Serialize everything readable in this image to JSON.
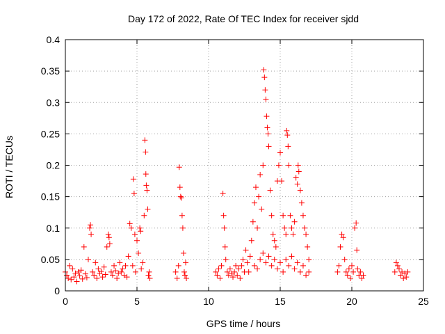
{
  "chart_data": {
    "type": "scatter",
    "title": "Day 172 of 2022, Rate Of TEC Index for receiver sjdd",
    "xlabel": "GPS time / hours",
    "ylabel": "ROTI / TECUs",
    "xlim": [
      0,
      25
    ],
    "ylim": [
      0,
      0.4
    ],
    "x_ticks": [
      0,
      5,
      10,
      15,
      20,
      25
    ],
    "x_tick_labels": [
      "0",
      "5",
      "10",
      "15",
      "20",
      "25"
    ],
    "y_ticks": [
      0,
      0.05,
      0.1,
      0.15,
      0.2,
      0.25,
      0.3,
      0.35,
      0.4
    ],
    "y_tick_labels": [
      "0",
      "0.05",
      "0.1",
      "0.15",
      "0.2",
      "0.25",
      "0.3",
      "0.35",
      "0.4"
    ],
    "grid": true,
    "marker": "+",
    "color": "#ff0000",
    "series": [
      {
        "name": "ROTI",
        "points": [
          [
            0.0,
            0.03
          ],
          [
            0.1,
            0.025
          ],
          [
            0.2,
            0.02
          ],
          [
            0.3,
            0.04
          ],
          [
            0.4,
            0.018
          ],
          [
            0.5,
            0.035
          ],
          [
            0.6,
            0.022
          ],
          [
            0.7,
            0.028
          ],
          [
            0.8,
            0.015
          ],
          [
            0.9,
            0.03
          ],
          [
            1.0,
            0.024
          ],
          [
            1.1,
            0.033
          ],
          [
            1.2,
            0.019
          ],
          [
            1.3,
            0.07
          ],
          [
            1.4,
            0.027
          ],
          [
            1.5,
            0.021
          ],
          [
            1.6,
            0.05
          ],
          [
            1.7,
            0.1
          ],
          [
            1.75,
            0.105
          ],
          [
            1.8,
            0.09
          ],
          [
            1.9,
            0.03
          ],
          [
            2.0,
            0.025
          ],
          [
            2.1,
            0.045
          ],
          [
            2.2,
            0.02
          ],
          [
            2.3,
            0.035
          ],
          [
            2.4,
            0.028
          ],
          [
            2.5,
            0.031
          ],
          [
            2.6,
            0.022
          ],
          [
            2.7,
            0.038
          ],
          [
            2.8,
            0.026
          ],
          [
            2.9,
            0.07
          ],
          [
            3.0,
            0.09
          ],
          [
            3.05,
            0.085
          ],
          [
            3.1,
            0.075
          ],
          [
            3.2,
            0.03
          ],
          [
            3.3,
            0.025
          ],
          [
            3.4,
            0.04
          ],
          [
            3.5,
            0.032
          ],
          [
            3.6,
            0.02
          ],
          [
            3.7,
            0.028
          ],
          [
            3.8,
            0.045
          ],
          [
            3.9,
            0.03
          ],
          [
            4.0,
            0.035
          ],
          [
            4.1,
            0.025
          ],
          [
            4.2,
            0.04
          ],
          [
            4.3,
            0.022
          ],
          [
            4.4,
            0.055
          ],
          [
            4.5,
            0.107
          ],
          [
            4.6,
            0.1
          ],
          [
            4.7,
            0.04
          ],
          [
            4.75,
            0.178
          ],
          [
            4.8,
            0.155
          ],
          [
            4.85,
            0.09
          ],
          [
            4.9,
            0.03
          ],
          [
            5.0,
            0.08
          ],
          [
            5.1,
            0.06
          ],
          [
            5.2,
            0.1
          ],
          [
            5.25,
            0.095
          ],
          [
            5.3,
            0.035
          ],
          [
            5.4,
            0.045
          ],
          [
            5.5,
            0.12
          ],
          [
            5.55,
            0.24
          ],
          [
            5.6,
            0.221
          ],
          [
            5.62,
            0.186
          ],
          [
            5.65,
            0.168
          ],
          [
            5.7,
            0.16
          ],
          [
            5.75,
            0.13
          ],
          [
            5.8,
            0.025
          ],
          [
            5.85,
            0.03
          ],
          [
            5.9,
            0.02
          ],
          [
            7.7,
            0.03
          ],
          [
            7.8,
            0.02
          ],
          [
            7.9,
            0.04
          ],
          [
            7.95,
            0.197
          ],
          [
            8.0,
            0.165
          ],
          [
            8.05,
            0.15
          ],
          [
            8.1,
            0.148
          ],
          [
            8.15,
            0.12
          ],
          [
            8.2,
            0.1
          ],
          [
            8.25,
            0.06
          ],
          [
            8.3,
            0.03
          ],
          [
            8.35,
            0.025
          ],
          [
            8.4,
            0.045
          ],
          [
            8.45,
            0.02
          ],
          [
            10.5,
            0.03
          ],
          [
            10.6,
            0.025
          ],
          [
            10.7,
            0.035
          ],
          [
            10.8,
            0.02
          ],
          [
            10.9,
            0.04
          ],
          [
            11.0,
            0.155
          ],
          [
            11.05,
            0.12
          ],
          [
            11.1,
            0.1
          ],
          [
            11.15,
            0.07
          ],
          [
            11.2,
            0.05
          ],
          [
            11.3,
            0.03
          ],
          [
            11.4,
            0.025
          ],
          [
            11.5,
            0.035
          ],
          [
            11.6,
            0.028
          ],
          [
            11.7,
            0.022
          ],
          [
            11.8,
            0.03
          ],
          [
            11.9,
            0.04
          ],
          [
            12.0,
            0.025
          ],
          [
            12.1,
            0.035
          ],
          [
            12.2,
            0.02
          ],
          [
            12.3,
            0.04
          ],
          [
            12.4,
            0.05
          ],
          [
            12.5,
            0.03
          ],
          [
            12.6,
            0.065
          ],
          [
            12.7,
            0.045
          ],
          [
            12.8,
            0.03
          ],
          [
            12.9,
            0.055
          ],
          [
            13.0,
            0.08
          ],
          [
            13.1,
            0.11
          ],
          [
            13.2,
            0.14
          ],
          [
            13.3,
            0.165
          ],
          [
            13.4,
            0.1
          ],
          [
            13.5,
            0.15
          ],
          [
            13.6,
            0.185
          ],
          [
            13.7,
            0.13
          ],
          [
            13.8,
            0.2
          ],
          [
            13.85,
            0.352
          ],
          [
            13.9,
            0.34
          ],
          [
            13.95,
            0.32
          ],
          [
            14.0,
            0.305
          ],
          [
            14.05,
            0.278
          ],
          [
            14.1,
            0.26
          ],
          [
            14.15,
            0.25
          ],
          [
            14.2,
            0.23
          ],
          [
            14.3,
            0.16
          ],
          [
            14.4,
            0.12
          ],
          [
            14.5,
            0.09
          ],
          [
            14.6,
            0.08
          ],
          [
            14.7,
            0.07
          ],
          [
            14.8,
            0.175
          ],
          [
            14.9,
            0.2
          ],
          [
            15.0,
            0.22
          ],
          [
            15.1,
            0.175
          ],
          [
            15.2,
            0.12
          ],
          [
            15.3,
            0.1
          ],
          [
            15.4,
            0.09
          ],
          [
            15.45,
            0.255
          ],
          [
            15.5,
            0.248
          ],
          [
            15.55,
            0.23
          ],
          [
            15.6,
            0.2
          ],
          [
            15.7,
            0.12
          ],
          [
            15.8,
            0.1
          ],
          [
            15.9,
            0.09
          ],
          [
            16.0,
            0.11
          ],
          [
            16.1,
            0.18
          ],
          [
            16.2,
            0.17
          ],
          [
            16.25,
            0.2
          ],
          [
            16.3,
            0.19
          ],
          [
            16.4,
            0.16
          ],
          [
            16.5,
            0.14
          ],
          [
            16.6,
            0.12
          ],
          [
            16.7,
            0.1
          ],
          [
            16.8,
            0.09
          ],
          [
            16.9,
            0.07
          ],
          [
            17.0,
            0.05
          ],
          [
            13.2,
            0.04
          ],
          [
            13.4,
            0.035
          ],
          [
            13.6,
            0.05
          ],
          [
            13.8,
            0.06
          ],
          [
            14.0,
            0.045
          ],
          [
            14.2,
            0.055
          ],
          [
            14.4,
            0.04
          ],
          [
            14.6,
            0.05
          ],
          [
            14.8,
            0.035
          ],
          [
            15.0,
            0.045
          ],
          [
            15.2,
            0.03
          ],
          [
            15.4,
            0.05
          ],
          [
            15.6,
            0.04
          ],
          [
            15.8,
            0.055
          ],
          [
            16.0,
            0.035
          ],
          [
            16.2,
            0.045
          ],
          [
            16.4,
            0.03
          ],
          [
            16.6,
            0.04
          ],
          [
            16.8,
            0.025
          ],
          [
            17.0,
            0.03
          ],
          [
            19.0,
            0.03
          ],
          [
            19.1,
            0.04
          ],
          [
            19.2,
            0.07
          ],
          [
            19.3,
            0.09
          ],
          [
            19.4,
            0.085
          ],
          [
            19.5,
            0.05
          ],
          [
            19.6,
            0.03
          ],
          [
            19.7,
            0.025
          ],
          [
            19.8,
            0.035
          ],
          [
            19.9,
            0.02
          ],
          [
            20.0,
            0.04
          ],
          [
            20.1,
            0.03
          ],
          [
            20.2,
            0.1
          ],
          [
            20.3,
            0.108
          ],
          [
            20.35,
            0.065
          ],
          [
            20.4,
            0.035
          ],
          [
            20.5,
            0.025
          ],
          [
            20.6,
            0.03
          ],
          [
            20.7,
            0.02
          ],
          [
            20.8,
            0.025
          ],
          [
            23.0,
            0.03
          ],
          [
            23.1,
            0.045
          ],
          [
            23.2,
            0.04
          ],
          [
            23.3,
            0.035
          ],
          [
            23.4,
            0.025
          ],
          [
            23.5,
            0.03
          ],
          [
            23.6,
            0.02
          ],
          [
            23.7,
            0.028
          ],
          [
            23.8,
            0.022
          ],
          [
            23.9,
            0.03
          ]
        ]
      }
    ]
  }
}
